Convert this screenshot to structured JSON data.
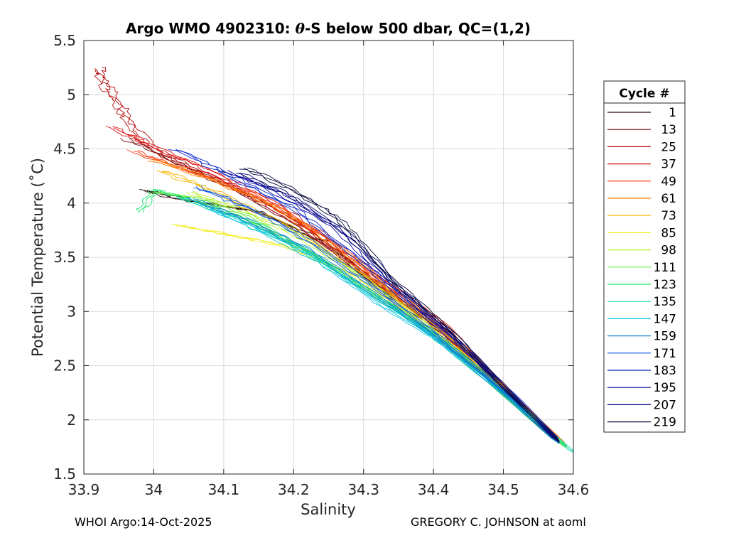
{
  "chart_data": {
    "type": "line",
    "title_prefix": "Argo WMO 4902310: ",
    "title_theta": "θ",
    "title_suffix": "-S below 500 dbar,  QC=(1,2)",
    "xlabel": "Salinity",
    "ylabel": "Potential Temperature (˚C)",
    "xlim": [
      33.9,
      34.6
    ],
    "ylim": [
      1.5,
      5.5
    ],
    "xticks": [
      33.9,
      34.0,
      34.1,
      34.2,
      34.3,
      34.4,
      34.5,
      34.6
    ],
    "xtick_labels": [
      "33.9",
      "34",
      "34.1",
      "34.2",
      "34.3",
      "34.4",
      "34.5",
      "34.6"
    ],
    "yticks": [
      1.5,
      2.0,
      2.5,
      3.0,
      3.5,
      4.0,
      4.5,
      5.0,
      5.5
    ],
    "ytick_labels": [
      "1.5",
      "2",
      "2.5",
      "3",
      "3.5",
      "4",
      "4.5",
      "5",
      "5.5"
    ],
    "grid": true,
    "legend_title": "Cycle #",
    "legend_position": "outside-right",
    "series": [
      {
        "name": "1",
        "color": "#2b0a0a",
        "points": [
          [
            33.985,
            4.12
          ],
          [
            34.05,
            4.02
          ],
          [
            34.15,
            3.92
          ],
          [
            34.25,
            3.62
          ],
          [
            34.33,
            3.18
          ],
          [
            34.42,
            2.78
          ],
          [
            34.5,
            2.25
          ],
          [
            34.58,
            1.79
          ]
        ]
      },
      {
        "name": "13",
        "color": "#7a0a0a",
        "points": [
          [
            33.96,
            4.6
          ],
          [
            34.03,
            4.38
          ],
          [
            34.12,
            4.12
          ],
          [
            34.22,
            3.75
          ],
          [
            34.32,
            3.25
          ],
          [
            34.41,
            2.84
          ],
          [
            34.5,
            2.26
          ],
          [
            34.58,
            1.8
          ]
        ]
      },
      {
        "name": "25",
        "color": "#b80f0f",
        "points": [
          [
            33.92,
            5.25
          ],
          [
            33.93,
            5.1
          ],
          [
            33.95,
            4.9
          ],
          [
            33.97,
            4.7
          ],
          [
            34.01,
            4.45
          ],
          [
            34.1,
            4.2
          ],
          [
            34.2,
            3.85
          ],
          [
            34.3,
            3.35
          ],
          [
            34.4,
            2.9
          ],
          [
            34.5,
            2.3
          ],
          [
            34.58,
            1.82
          ]
        ]
      },
      {
        "name": "37",
        "color": "#e01010",
        "points": [
          [
            33.94,
            4.7
          ],
          [
            34.0,
            4.52
          ],
          [
            34.08,
            4.3
          ],
          [
            34.18,
            3.98
          ],
          [
            34.28,
            3.5
          ],
          [
            34.38,
            2.98
          ],
          [
            34.48,
            2.4
          ],
          [
            34.58,
            1.81
          ]
        ]
      },
      {
        "name": "49",
        "color": "#ff3a0a",
        "points": [
          [
            33.97,
            4.48
          ],
          [
            34.05,
            4.3
          ],
          [
            34.14,
            4.08
          ],
          [
            34.24,
            3.72
          ],
          [
            34.33,
            3.28
          ],
          [
            34.42,
            2.86
          ],
          [
            34.5,
            2.28
          ],
          [
            34.58,
            1.8
          ]
        ]
      },
      {
        "name": "61",
        "color": "#ff7a00",
        "points": [
          [
            34.0,
            4.4
          ],
          [
            34.08,
            4.22
          ],
          [
            34.17,
            3.98
          ],
          [
            34.26,
            3.6
          ],
          [
            34.35,
            3.15
          ],
          [
            34.44,
            2.7
          ],
          [
            34.52,
            2.18
          ],
          [
            34.59,
            1.76
          ]
        ]
      },
      {
        "name": "73",
        "color": "#f5b400",
        "points": [
          [
            34.01,
            4.3
          ],
          [
            34.09,
            4.1
          ],
          [
            34.19,
            3.8
          ],
          [
            34.28,
            3.42
          ],
          [
            34.37,
            3.02
          ],
          [
            34.46,
            2.55
          ],
          [
            34.53,
            2.1
          ],
          [
            34.59,
            1.75
          ]
        ]
      },
      {
        "name": "85",
        "color": "#f2ee1a",
        "points": [
          [
            34.03,
            3.8
          ],
          [
            34.1,
            3.72
          ],
          [
            34.19,
            3.6
          ],
          [
            34.27,
            3.38
          ],
          [
            34.35,
            3.05
          ],
          [
            34.44,
            2.62
          ],
          [
            34.52,
            2.14
          ],
          [
            34.59,
            1.75
          ]
        ]
      },
      {
        "name": "98",
        "color": "#b3ef2c",
        "points": [
          [
            34.05,
            4.1
          ],
          [
            34.12,
            3.95
          ],
          [
            34.2,
            3.72
          ],
          [
            34.29,
            3.35
          ],
          [
            34.37,
            2.98
          ],
          [
            34.45,
            2.55
          ],
          [
            34.53,
            2.1
          ],
          [
            34.59,
            1.74
          ]
        ]
      },
      {
        "name": "111",
        "color": "#5ff03c",
        "points": [
          [
            34.0,
            4.1
          ],
          [
            34.06,
            4.05
          ],
          [
            34.14,
            3.85
          ],
          [
            34.22,
            3.55
          ],
          [
            34.3,
            3.22
          ],
          [
            34.39,
            2.85
          ],
          [
            34.48,
            2.35
          ],
          [
            34.58,
            1.78
          ]
        ]
      },
      {
        "name": "123",
        "color": "#1ee66e",
        "points": [
          [
            33.98,
            3.92
          ],
          [
            34.0,
            4.12
          ],
          [
            34.07,
            4.0
          ],
          [
            34.15,
            3.8
          ],
          [
            34.24,
            3.48
          ],
          [
            34.33,
            3.1
          ],
          [
            34.42,
            2.7
          ],
          [
            34.51,
            2.2
          ],
          [
            34.59,
            1.75
          ]
        ]
      },
      {
        "name": "135",
        "color": "#14dcb4",
        "points": [
          [
            34.04,
            4.05
          ],
          [
            34.12,
            3.85
          ],
          [
            34.21,
            3.58
          ],
          [
            34.3,
            3.2
          ],
          [
            34.39,
            2.82
          ],
          [
            34.48,
            2.35
          ],
          [
            34.56,
            1.92
          ],
          [
            34.6,
            1.7
          ]
        ]
      },
      {
        "name": "147",
        "color": "#0fc3e6",
        "points": [
          [
            34.08,
            3.95
          ],
          [
            34.16,
            3.72
          ],
          [
            34.24,
            3.45
          ],
          [
            34.32,
            3.08
          ],
          [
            34.41,
            2.72
          ],
          [
            34.5,
            2.25
          ],
          [
            34.58,
            1.78
          ]
        ]
      },
      {
        "name": "159",
        "color": "#0a8cd2",
        "points": [
          [
            34.05,
            4.05
          ],
          [
            34.13,
            3.85
          ],
          [
            34.22,
            3.58
          ],
          [
            34.31,
            3.18
          ],
          [
            34.4,
            2.78
          ],
          [
            34.49,
            2.3
          ],
          [
            34.58,
            1.78
          ]
        ]
      },
      {
        "name": "171",
        "color": "#0a5adc",
        "points": [
          [
            34.06,
            4.15
          ],
          [
            34.14,
            3.95
          ],
          [
            34.23,
            3.62
          ],
          [
            34.32,
            3.2
          ],
          [
            34.41,
            2.76
          ],
          [
            34.5,
            2.27
          ],
          [
            34.58,
            1.79
          ]
        ]
      },
      {
        "name": "183",
        "color": "#0a28c8",
        "points": [
          [
            34.03,
            4.5
          ],
          [
            34.11,
            4.25
          ],
          [
            34.2,
            3.95
          ],
          [
            34.28,
            3.55
          ],
          [
            34.36,
            3.1
          ],
          [
            34.44,
            2.68
          ],
          [
            34.52,
            2.2
          ],
          [
            34.58,
            1.8
          ]
        ]
      },
      {
        "name": "195",
        "color": "#0a0aa0",
        "points": [
          [
            34.1,
            4.3
          ],
          [
            34.17,
            4.12
          ],
          [
            34.26,
            3.78
          ],
          [
            34.34,
            3.25
          ],
          [
            34.42,
            2.82
          ],
          [
            34.5,
            2.3
          ],
          [
            34.58,
            1.8
          ]
        ]
      },
      {
        "name": "207",
        "color": "#0a0a78",
        "points": [
          [
            34.12,
            4.28
          ],
          [
            34.2,
            4.05
          ],
          [
            34.28,
            3.7
          ],
          [
            34.35,
            3.22
          ],
          [
            34.43,
            2.78
          ],
          [
            34.51,
            2.25
          ],
          [
            34.58,
            1.79
          ]
        ]
      },
      {
        "name": "219",
        "color": "#050538",
        "points": [
          [
            34.13,
            4.32
          ],
          [
            34.2,
            4.12
          ],
          [
            34.27,
            3.82
          ],
          [
            34.34,
            3.3
          ],
          [
            34.42,
            2.85
          ],
          [
            34.5,
            2.3
          ],
          [
            34.58,
            1.8
          ]
        ]
      }
    ]
  },
  "footer": {
    "left": "WHOI Argo:14-Oct-2025",
    "right": "GREGORY C. JOHNSON at aoml"
  }
}
